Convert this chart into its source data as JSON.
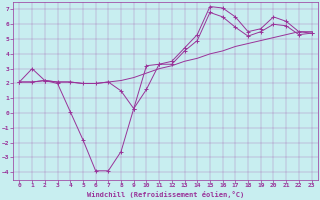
{
  "xlabel": "Windchill (Refroidissement éolien,°C)",
  "bg_color": "#c8eef0",
  "line_color": "#993399",
  "xlim": [
    -0.5,
    23.5
  ],
  "ylim": [
    -4.5,
    7.5
  ],
  "xticks": [
    0,
    1,
    2,
    3,
    4,
    5,
    6,
    7,
    8,
    9,
    10,
    11,
    12,
    13,
    14,
    15,
    16,
    17,
    18,
    19,
    20,
    21,
    22,
    23
  ],
  "yticks": [
    -4,
    -3,
    -2,
    -1,
    0,
    1,
    2,
    3,
    4,
    5,
    6,
    7
  ],
  "line1_x": [
    0,
    1,
    2,
    3,
    4,
    5,
    6,
    7,
    8,
    9,
    10,
    11,
    12,
    13,
    14,
    15,
    16,
    17,
    18,
    19,
    20,
    21,
    22,
    23
  ],
  "line1_y": [
    2.1,
    2.1,
    2.2,
    2.1,
    2.1,
    2.0,
    2.0,
    2.1,
    2.2,
    2.4,
    2.7,
    3.0,
    3.2,
    3.5,
    3.7,
    4.0,
    4.2,
    4.5,
    4.7,
    4.9,
    5.1,
    5.3,
    5.5,
    5.5
  ],
  "line2_x": [
    0,
    1,
    2,
    3,
    4,
    5,
    6,
    7,
    8,
    9,
    10,
    11,
    12,
    13,
    14,
    15,
    16,
    17,
    18,
    19,
    20,
    21,
    22,
    23
  ],
  "line2_y": [
    2.1,
    3.0,
    2.2,
    2.0,
    0.1,
    -1.8,
    -3.9,
    -3.9,
    -2.6,
    0.3,
    1.6,
    3.3,
    3.5,
    4.4,
    5.3,
    7.2,
    7.1,
    6.5,
    5.5,
    5.7,
    6.5,
    6.2,
    5.5,
    5.4
  ],
  "line3_x": [
    0,
    1,
    2,
    3,
    4,
    5,
    6,
    7,
    8,
    9,
    10,
    11,
    12,
    13,
    14,
    15,
    16,
    17,
    18,
    19,
    20,
    21,
    22,
    23
  ],
  "line3_y": [
    2.1,
    2.1,
    2.2,
    2.1,
    2.1,
    2.0,
    2.0,
    2.1,
    1.5,
    0.3,
    3.2,
    3.3,
    3.3,
    4.2,
    4.9,
    6.8,
    6.5,
    5.8,
    5.2,
    5.5,
    6.0,
    5.9,
    5.3,
    5.4
  ],
  "marker_size": 2.5,
  "lw": 0.7,
  "tick_fontsize": 4.5,
  "xlabel_fontsize": 5.0
}
